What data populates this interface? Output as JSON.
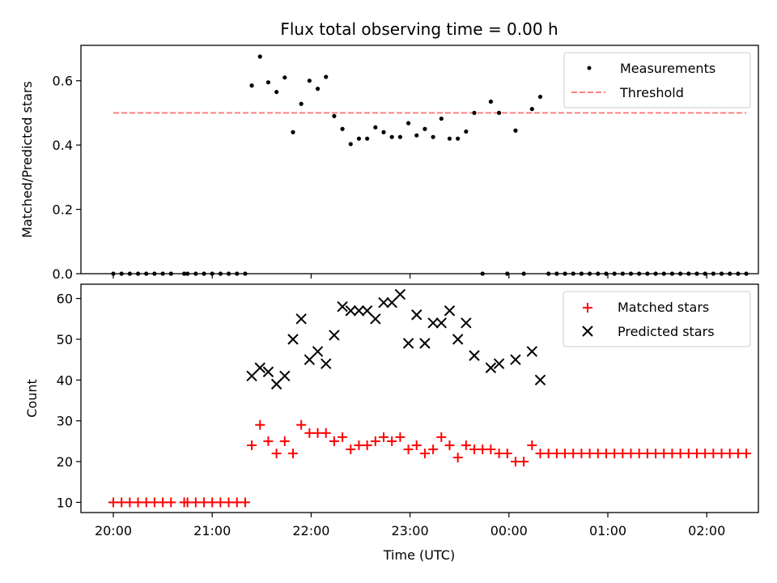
{
  "chart_data": [
    {
      "type": "scatter",
      "title": "Flux total observing time = 0.00 h",
      "ylabel": "Matched/Predicted stars",
      "ylim": [
        0,
        0.71
      ],
      "yticks": [
        0.0,
        0.2,
        0.4,
        0.6
      ],
      "ytick_labels": [
        "0.0",
        "0.2",
        "0.4",
        "0.6"
      ],
      "legend_placement": "top-right",
      "series": [
        {
          "name": "Measurements",
          "marker": "dot",
          "color": "#000000",
          "points": [
            [
              "20:00",
              0
            ],
            [
              "20:05",
              0
            ],
            [
              "20:10",
              0
            ],
            [
              "20:15",
              0
            ],
            [
              "20:20",
              0
            ],
            [
              "20:25",
              0
            ],
            [
              "20:30",
              0
            ],
            [
              "20:35",
              0
            ],
            [
              "20:43",
              0
            ],
            [
              "20:45",
              0
            ],
            [
              "20:50",
              0
            ],
            [
              "20:55",
              0
            ],
            [
              "21:00",
              0
            ],
            [
              "21:05",
              0
            ],
            [
              "21:10",
              0
            ],
            [
              "21:15",
              0
            ],
            [
              "21:20",
              0
            ],
            [
              "21:24",
              0.585
            ],
            [
              "21:29",
              0.675
            ],
            [
              "21:34",
              0.595
            ],
            [
              "21:39",
              0.565
            ],
            [
              "21:44",
              0.61
            ],
            [
              "21:49",
              0.44
            ],
            [
              "21:54",
              0.528
            ],
            [
              "21:59",
              0.6
            ],
            [
              "22:04",
              0.575
            ],
            [
              "22:09",
              0.612
            ],
            [
              "22:14",
              0.49
            ],
            [
              "22:19",
              0.45
            ],
            [
              "22:24",
              0.403
            ],
            [
              "22:29",
              0.42
            ],
            [
              "22:34",
              0.42
            ],
            [
              "22:39",
              0.455
            ],
            [
              "22:44",
              0.44
            ],
            [
              "22:49",
              0.425
            ],
            [
              "22:54",
              0.425
            ],
            [
              "22:59",
              0.468
            ],
            [
              "23:04",
              0.43
            ],
            [
              "23:09",
              0.45
            ],
            [
              "23:14",
              0.425
            ],
            [
              "23:19",
              0.482
            ],
            [
              "23:24",
              0.42
            ],
            [
              "23:29",
              0.42
            ],
            [
              "23:34",
              0.442
            ],
            [
              "23:39",
              0.5
            ],
            [
              "23:44",
              0
            ],
            [
              "23:49",
              0.535
            ],
            [
              "23:54",
              0.5
            ],
            [
              "23:59",
              0
            ],
            [
              "00:04",
              0.445
            ],
            [
              "00:09",
              0
            ],
            [
              "00:14",
              0.512
            ],
            [
              "00:19",
              0.55
            ],
            [
              "00:24",
              0
            ],
            [
              "00:29",
              0
            ],
            [
              "00:34",
              0
            ],
            [
              "00:39",
              0
            ],
            [
              "00:44",
              0
            ],
            [
              "00:49",
              0
            ],
            [
              "00:54",
              0
            ],
            [
              "00:59",
              0
            ],
            [
              "01:04",
              0
            ],
            [
              "01:09",
              0
            ],
            [
              "01:14",
              0
            ],
            [
              "01:19",
              0
            ],
            [
              "01:24",
              0
            ],
            [
              "01:29",
              0
            ],
            [
              "01:34",
              0
            ],
            [
              "01:39",
              0
            ],
            [
              "01:44",
              0
            ],
            [
              "01:49",
              0
            ],
            [
              "01:54",
              0
            ],
            [
              "01:59",
              0
            ],
            [
              "02:04",
              0
            ],
            [
              "02:09",
              0
            ],
            [
              "02:14",
              0
            ],
            [
              "02:19",
              0
            ],
            [
              "02:24",
              0
            ]
          ]
        },
        {
          "name": "Threshold",
          "marker": "dashed-line",
          "color": "#ff7f7f",
          "points": [
            [
              "20:00",
              0.5
            ],
            [
              "02:24",
              0.5
            ]
          ]
        }
      ]
    },
    {
      "type": "scatter",
      "xlabel": "Time (UTC)",
      "ylabel": "Count",
      "ylim": [
        7.5,
        63.5
      ],
      "yticks": [
        10,
        20,
        30,
        40,
        50,
        60
      ],
      "ytick_labels": [
        "10",
        "20",
        "30",
        "40",
        "50",
        "60"
      ],
      "xticks": [
        "20:00",
        "21:00",
        "22:00",
        "23:00",
        "00:00",
        "01:00",
        "02:00"
      ],
      "legend_placement": "top-right",
      "series": [
        {
          "name": "Matched stars",
          "marker": "plus",
          "color": "#ff0000",
          "points": [
            [
              "20:00",
              10
            ],
            [
              "20:05",
              10
            ],
            [
              "20:10",
              10
            ],
            [
              "20:15",
              10
            ],
            [
              "20:20",
              10
            ],
            [
              "20:25",
              10
            ],
            [
              "20:30",
              10
            ],
            [
              "20:35",
              10
            ],
            [
              "20:43",
              10
            ],
            [
              "20:45",
              10
            ],
            [
              "20:50",
              10
            ],
            [
              "20:55",
              10
            ],
            [
              "21:00",
              10
            ],
            [
              "21:05",
              10
            ],
            [
              "21:10",
              10
            ],
            [
              "21:15",
              10
            ],
            [
              "21:20",
              10
            ],
            [
              "21:24",
              24
            ],
            [
              "21:29",
              29
            ],
            [
              "21:34",
              25
            ],
            [
              "21:39",
              22
            ],
            [
              "21:44",
              25
            ],
            [
              "21:49",
              22
            ],
            [
              "21:54",
              29
            ],
            [
              "21:59",
              27
            ],
            [
              "22:04",
              27
            ],
            [
              "22:09",
              27
            ],
            [
              "22:14",
              25
            ],
            [
              "22:19",
              26
            ],
            [
              "22:24",
              23
            ],
            [
              "22:29",
              24
            ],
            [
              "22:34",
              24
            ],
            [
              "22:39",
              25
            ],
            [
              "22:44",
              26
            ],
            [
              "22:49",
              25
            ],
            [
              "22:54",
              26
            ],
            [
              "22:59",
              23
            ],
            [
              "23:04",
              24
            ],
            [
              "23:09",
              22
            ],
            [
              "23:14",
              23
            ],
            [
              "23:19",
              26
            ],
            [
              "23:24",
              24
            ],
            [
              "23:29",
              21
            ],
            [
              "23:34",
              24
            ],
            [
              "23:39",
              23
            ],
            [
              "23:44",
              23
            ],
            [
              "23:49",
              23
            ],
            [
              "23:54",
              22
            ],
            [
              "23:59",
              22
            ],
            [
              "00:04",
              20
            ],
            [
              "00:09",
              20
            ],
            [
              "00:14",
              24
            ],
            [
              "00:19",
              22
            ],
            [
              "00:24",
              22
            ],
            [
              "00:29",
              22
            ],
            [
              "00:34",
              22
            ],
            [
              "00:39",
              22
            ],
            [
              "00:44",
              22
            ],
            [
              "00:49",
              22
            ],
            [
              "00:54",
              22
            ],
            [
              "00:59",
              22
            ],
            [
              "01:04",
              22
            ],
            [
              "01:09",
              22
            ],
            [
              "01:14",
              22
            ],
            [
              "01:19",
              22
            ],
            [
              "01:24",
              22
            ],
            [
              "01:29",
              22
            ],
            [
              "01:34",
              22
            ],
            [
              "01:39",
              22
            ],
            [
              "01:44",
              22
            ],
            [
              "01:49",
              22
            ],
            [
              "01:54",
              22
            ],
            [
              "01:59",
              22
            ],
            [
              "02:04",
              22
            ],
            [
              "02:09",
              22
            ],
            [
              "02:14",
              22
            ],
            [
              "02:19",
              22
            ],
            [
              "02:24",
              22
            ]
          ]
        },
        {
          "name": "Predicted stars",
          "marker": "x",
          "color": "#000000",
          "points": [
            [
              "21:24",
              41
            ],
            [
              "21:29",
              43
            ],
            [
              "21:34",
              42
            ],
            [
              "21:39",
              39
            ],
            [
              "21:44",
              41
            ],
            [
              "21:49",
              50
            ],
            [
              "21:54",
              55
            ],
            [
              "21:59",
              45
            ],
            [
              "22:04",
              47
            ],
            [
              "22:09",
              44
            ],
            [
              "22:14",
              51
            ],
            [
              "22:19",
              58
            ],
            [
              "22:24",
              57
            ],
            [
              "22:29",
              57
            ],
            [
              "22:34",
              57
            ],
            [
              "22:39",
              55
            ],
            [
              "22:44",
              59
            ],
            [
              "22:49",
              59
            ],
            [
              "22:54",
              61
            ],
            [
              "22:59",
              49
            ],
            [
              "23:04",
              56
            ],
            [
              "23:09",
              49
            ],
            [
              "23:14",
              54
            ],
            [
              "23:19",
              54
            ],
            [
              "23:24",
              57
            ],
            [
              "23:29",
              50
            ],
            [
              "23:34",
              54
            ],
            [
              "23:39",
              46
            ],
            [
              "23:49",
              43
            ],
            [
              "23:54",
              44
            ],
            [
              "00:04",
              45
            ],
            [
              "00:14",
              47
            ],
            [
              "00:19",
              40
            ]
          ]
        }
      ]
    }
  ]
}
